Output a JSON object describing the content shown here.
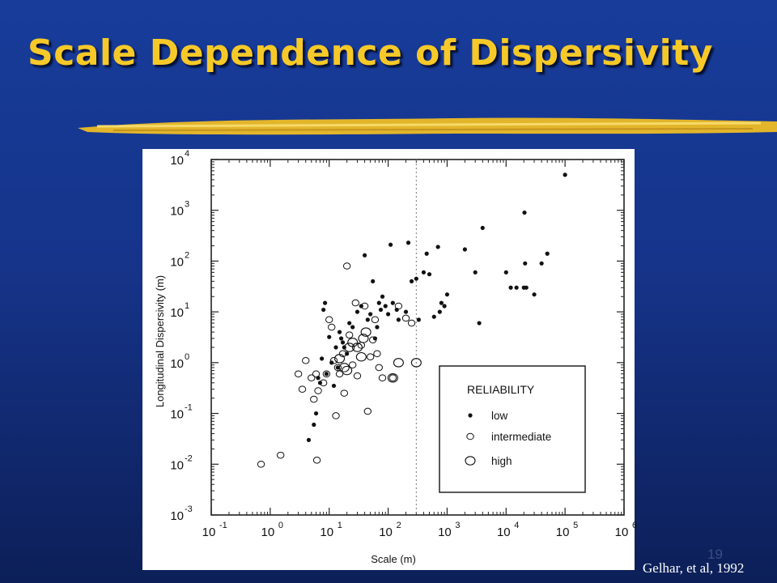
{
  "slide": {
    "title": "Scale Dependence of Dispersivity",
    "page_number": "19",
    "citation": "Gelhar, et al, 1992",
    "colors": {
      "background": "#173c9a",
      "title": "#f7c928",
      "brush": "#e3b52a",
      "chart_bg": "#ffffff"
    }
  },
  "chart_data": {
    "type": "scatter",
    "title": "",
    "xlabel": "Scale (m)",
    "ylabel": "Longitudinal Dispersivity (m)",
    "xscale": "log",
    "yscale": "log",
    "xlim": [
      0.1,
      1000000
    ],
    "ylim": [
      0.001,
      10000
    ],
    "x_ticks": [
      {
        "base": "10",
        "exp": "-1"
      },
      {
        "base": "10",
        "exp": "0"
      },
      {
        "base": "10",
        "exp": "1"
      },
      {
        "base": "10",
        "exp": "2"
      },
      {
        "base": "10",
        "exp": "3"
      },
      {
        "base": "10",
        "exp": "4"
      },
      {
        "base": "10",
        "exp": "5"
      },
      {
        "base": "10",
        "exp": "6"
      }
    ],
    "y_ticks": [
      {
        "base": "10",
        "exp": "-3"
      },
      {
        "base": "10",
        "exp": "-2"
      },
      {
        "base": "10",
        "exp": "-1"
      },
      {
        "base": "10",
        "exp": "0"
      },
      {
        "base": "10",
        "exp": "1"
      },
      {
        "base": "10",
        "exp": "2"
      },
      {
        "base": "10",
        "exp": "3"
      },
      {
        "base": "10",
        "exp": "4"
      }
    ],
    "reference_line_x": 300,
    "legend": {
      "title": "RELIABILITY",
      "placement": "bottom-right",
      "entries": [
        "low",
        "intermediate",
        "high"
      ]
    },
    "series": [
      {
        "name": "low",
        "marker": "dot",
        "points": [
          [
            4.5,
            0.03
          ],
          [
            5.5,
            0.06
          ],
          [
            6,
            0.1
          ],
          [
            6.5,
            0.5
          ],
          [
            7,
            0.4
          ],
          [
            7.5,
            1.2
          ],
          [
            8,
            11
          ],
          [
            8.5,
            15
          ],
          [
            9,
            0.6
          ],
          [
            10,
            3.2
          ],
          [
            11,
            1
          ],
          [
            12,
            0.35
          ],
          [
            13,
            2
          ],
          [
            14,
            0.8
          ],
          [
            15,
            4
          ],
          [
            16,
            3
          ],
          [
            17,
            2.5
          ],
          [
            18,
            2
          ],
          [
            20,
            1.5
          ],
          [
            22,
            6
          ],
          [
            25,
            5
          ],
          [
            30,
            10
          ],
          [
            35,
            13
          ],
          [
            40,
            130
          ],
          [
            45,
            7
          ],
          [
            50,
            9
          ],
          [
            55,
            40
          ],
          [
            60,
            3
          ],
          [
            65,
            5
          ],
          [
            70,
            15
          ],
          [
            75,
            11
          ],
          [
            80,
            20
          ],
          [
            90,
            13
          ],
          [
            100,
            9
          ],
          [
            110,
            210
          ],
          [
            120,
            15
          ],
          [
            140,
            11
          ],
          [
            150,
            7
          ],
          [
            200,
            10
          ],
          [
            220,
            230
          ],
          [
            250,
            40
          ],
          [
            300,
            45
          ],
          [
            330,
            7
          ],
          [
            400,
            60
          ],
          [
            450,
            140
          ],
          [
            500,
            55
          ],
          [
            600,
            8
          ],
          [
            700,
            190
          ],
          [
            750,
            10
          ],
          [
            800,
            15
          ],
          [
            900,
            13
          ],
          [
            1000,
            22
          ],
          [
            2000,
            170
          ],
          [
            3000,
            60
          ],
          [
            3500,
            6
          ],
          [
            4000,
            450
          ],
          [
            10000,
            60
          ],
          [
            12000,
            30
          ],
          [
            15000,
            30
          ],
          [
            20000,
            30
          ],
          [
            20500,
            900
          ],
          [
            21000,
            90
          ],
          [
            22000,
            30
          ],
          [
            30000,
            22
          ],
          [
            40000,
            90
          ],
          [
            50000,
            140
          ],
          [
            100000,
            5000
          ]
        ]
      },
      {
        "name": "intermediate",
        "marker": "small-circle",
        "points": [
          [
            0.7,
            0.01
          ],
          [
            1.5,
            0.015
          ],
          [
            3,
            0.6
          ],
          [
            3.5,
            0.3
          ],
          [
            4,
            1.1
          ],
          [
            5,
            0.5
          ],
          [
            5.5,
            0.19
          ],
          [
            6,
            0.6
          ],
          [
            6.2,
            0.012
          ],
          [
            6.5,
            0.28
          ],
          [
            8,
            0.4
          ],
          [
            9,
            0.6
          ],
          [
            10,
            7
          ],
          [
            11,
            5
          ],
          [
            12,
            1.1
          ],
          [
            13,
            0.09
          ],
          [
            14,
            0.8
          ],
          [
            15,
            0.6
          ],
          [
            17,
            1.5
          ],
          [
            18,
            0.25
          ],
          [
            20,
            80
          ],
          [
            22,
            3.5
          ],
          [
            25,
            0.9
          ],
          [
            28,
            15
          ],
          [
            30,
            0.55
          ],
          [
            35,
            2.2
          ],
          [
            40,
            13
          ],
          [
            45,
            0.11
          ],
          [
            50,
            1.3
          ],
          [
            55,
            2.8
          ],
          [
            60,
            7
          ],
          [
            65,
            1.5
          ],
          [
            70,
            0.8
          ],
          [
            80,
            0.5
          ],
          [
            120,
            0.5
          ],
          [
            150,
            13
          ],
          [
            200,
            7.5
          ],
          [
            250,
            6
          ]
        ]
      },
      {
        "name": "high",
        "marker": "large-circle",
        "points": [
          [
            15,
            1.2
          ],
          [
            18,
            0.8
          ],
          [
            20,
            0.7
          ],
          [
            22,
            2
          ],
          [
            25,
            2.5
          ],
          [
            30,
            2
          ],
          [
            35,
            1.3
          ],
          [
            38,
            3
          ],
          [
            42,
            4
          ],
          [
            120,
            0.5
          ],
          [
            150,
            1
          ],
          [
            300,
            1
          ]
        ]
      }
    ]
  }
}
